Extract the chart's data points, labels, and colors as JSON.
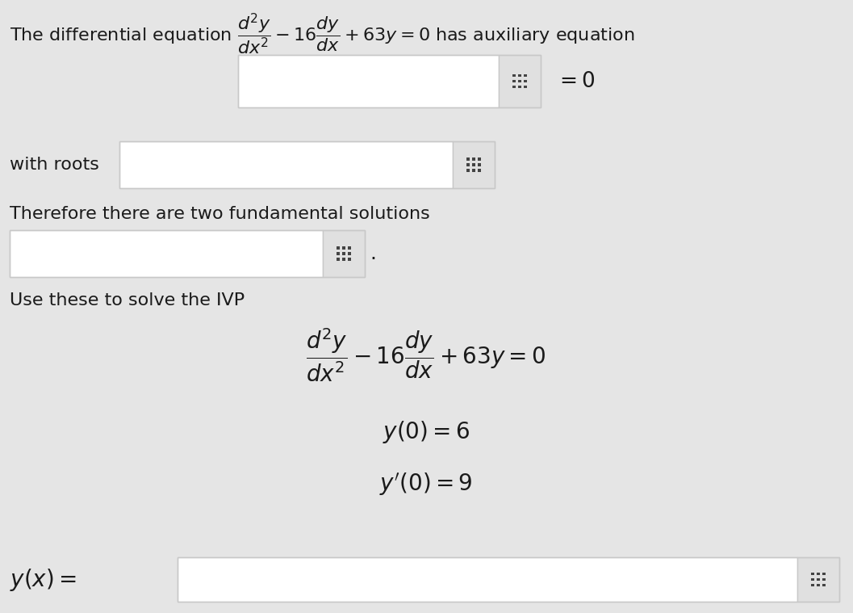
{
  "background_color": "#e5e5e5",
  "text_color": "#1a1a1a",
  "box_bg": "#ffffff",
  "box_border": "#c8c8c8",
  "grid_icon_color": "#444444",
  "grid_icon_bg": "#e0e0e0",
  "font_size_title": 16,
  "font_size_body": 16,
  "font_size_math_large": 20,
  "title_line": "The differential equation $\\dfrac{d^2y}{dx^2} - 16\\dfrac{dy}{dx} + 63y = 0$ has auxiliary equation",
  "aux_suffix": "$= 0$",
  "with_roots": "with roots",
  "fund_text": "Therefore there are two fundamental solutions",
  "fund_suffix": ".",
  "ivp_header": "Use these to solve the IVP",
  "ivp_eq": "$\\dfrac{d^2y}{dx^2} - 16\\dfrac{dy}{dx} + 63y = 0$",
  "ivp_ic1": "$y(0) = 6$",
  "ivp_ic2": "$y'(0) = 9$",
  "yx_label": "$y(x) =$"
}
